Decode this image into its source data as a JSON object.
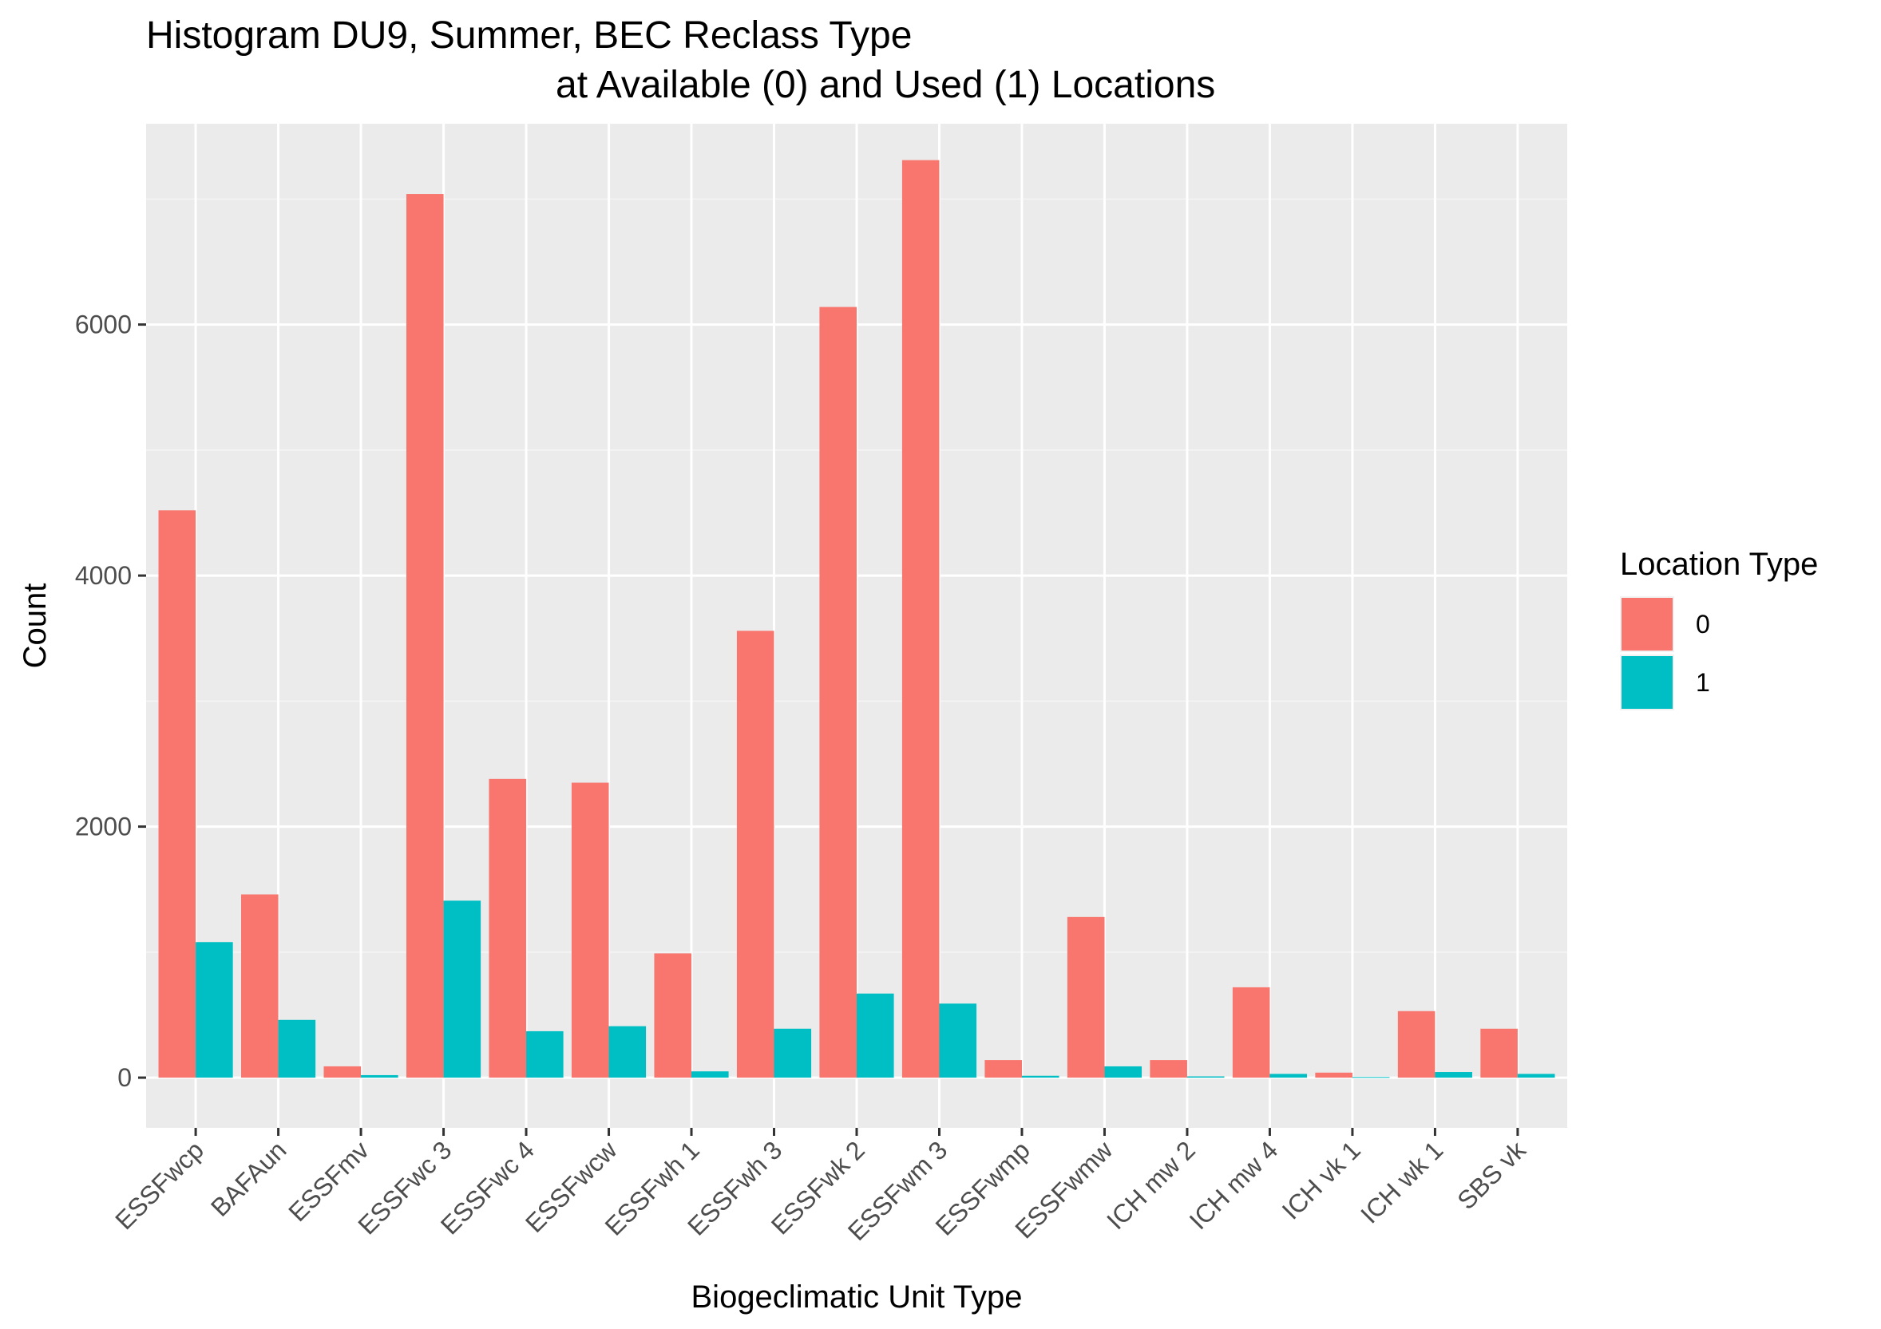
{
  "chart_data": {
    "type": "bar",
    "title_lines": [
      "Histogram DU9, Summer, BEC Reclass Type",
      "at Available (0) and Used (1) Locations"
    ],
    "xlabel": "Biogeclimatic Unit Type",
    "ylabel": "Count",
    "ylim": [
      -400,
      7600
    ],
    "yticks": [
      0,
      2000,
      4000,
      6000
    ],
    "grid": true,
    "legend": {
      "title": "Location Type",
      "placement": "right"
    },
    "categories": [
      "ESSFwcp",
      "BAFAun",
      "ESSFmv",
      "ESSFwc 3",
      "ESSFwc 4",
      "ESSFwcw",
      "ESSFwh 1",
      "ESSFwh 3",
      "ESSFwk 2",
      "ESSFwm 3",
      "ESSFwmp",
      "ESSFwmw",
      "ICH mw 2",
      "ICH mw 4",
      "ICH vk 1",
      "ICH wk 1",
      "SBS vk"
    ],
    "series": [
      {
        "name": "0",
        "color": "#F8766D",
        "values": [
          4520,
          1460,
          90,
          7040,
          2380,
          2350,
          990,
          3560,
          6140,
          7310,
          140,
          1280,
          140,
          720,
          40,
          530,
          390
        ]
      },
      {
        "name": "1",
        "color": "#00BFC4",
        "values": [
          1080,
          460,
          20,
          1410,
          370,
          410,
          50,
          390,
          670,
          590,
          15,
          90,
          10,
          30,
          5,
          45,
          30
        ]
      }
    ]
  }
}
